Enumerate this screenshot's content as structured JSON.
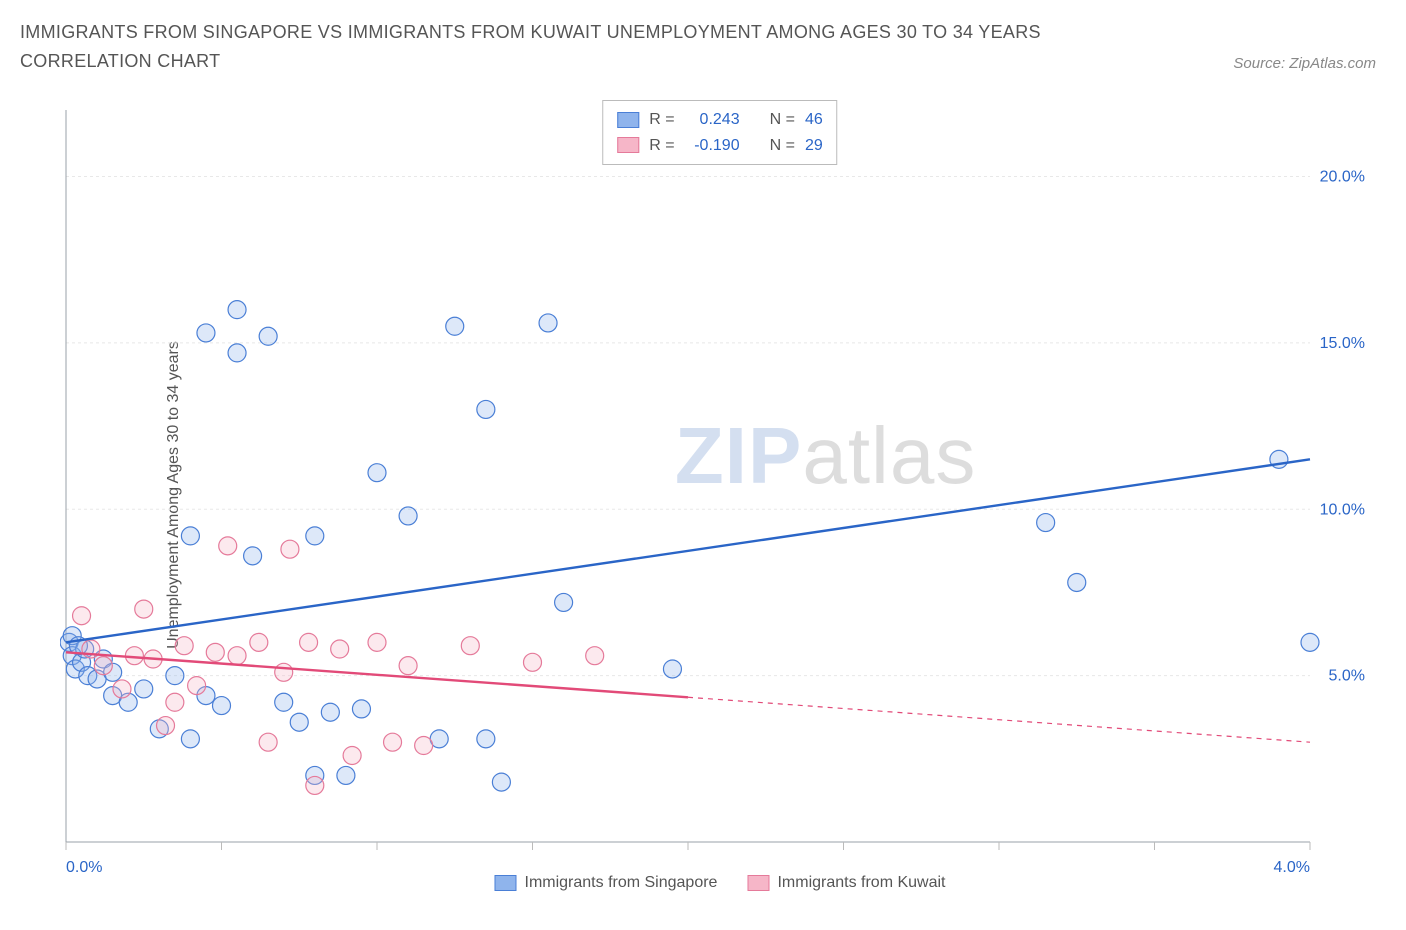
{
  "title": "IMMIGRANTS FROM SINGAPORE VS IMMIGRANTS FROM KUWAIT UNEMPLOYMENT AMONG AGES 30 TO 34 YEARS CORRELATION CHART",
  "source_prefix": "Source: ",
  "source_name": "ZipAtlas.com",
  "y_axis_label": "Unemployment Among Ages 30 to 34 years",
  "watermark_zip": "ZIP",
  "watermark_atlas": "atlas",
  "chart": {
    "type": "scatter",
    "background_color": "#ffffff",
    "plot_border_color": "#9aa1a8",
    "grid_color": "#e8e8e8",
    "tick_color": "#bbbbbb",
    "x_tick_label_color": "#2a65c7",
    "y_tick_label_color": "#2a65c7",
    "tick_fontsize": 16,
    "xlim": [
      0,
      4.0
    ],
    "ylim": [
      0,
      22
    ],
    "x_ticks": [
      0.0,
      0.5,
      1.0,
      1.5,
      2.0,
      2.5,
      3.0,
      3.5,
      4.0
    ],
    "x_tick_labels": [
      "0.0%",
      "",
      "",
      "",
      "",
      "",
      "",
      "",
      "4.0%"
    ],
    "y_grid": [
      5,
      10,
      15,
      20
    ],
    "y_tick_labels": [
      "5.0%",
      "10.0%",
      "15.0%",
      "20.0%"
    ],
    "marker_radius": 9,
    "marker_stroke_width": 1.2,
    "marker_fill_opacity": 0.3,
    "trend_line_width": 2.4,
    "series": [
      {
        "key": "singapore",
        "label": "Immigrants from Singapore",
        "color": "#2a65c7",
        "fill": "#8fb4ec",
        "stroke": "#4a7fd6",
        "r_label": "R = ",
        "r_value": "0.243",
        "n_label": "N = ",
        "n_value": "46",
        "trend": {
          "x1": 0.0,
          "y1": 6.0,
          "x2": 4.0,
          "y2": 11.5,
          "dash_from_x": null
        },
        "points": [
          [
            0.01,
            6.0
          ],
          [
            0.02,
            5.6
          ],
          [
            0.03,
            5.2
          ],
          [
            0.05,
            5.4
          ],
          [
            0.06,
            5.8
          ],
          [
            0.07,
            5.0
          ],
          [
            0.1,
            4.9
          ],
          [
            0.12,
            5.5
          ],
          [
            0.15,
            5.1
          ],
          [
            0.15,
            4.4
          ],
          [
            0.2,
            4.2
          ],
          [
            0.25,
            4.6
          ],
          [
            0.3,
            3.4
          ],
          [
            0.35,
            5.0
          ],
          [
            0.4,
            3.1
          ],
          [
            0.4,
            9.2
          ],
          [
            0.45,
            4.4
          ],
          [
            0.5,
            4.1
          ],
          [
            0.45,
            15.3
          ],
          [
            0.55,
            16.0
          ],
          [
            0.55,
            14.7
          ],
          [
            0.6,
            8.6
          ],
          [
            0.65,
            15.2
          ],
          [
            0.7,
            4.2
          ],
          [
            0.75,
            3.6
          ],
          [
            0.8,
            9.2
          ],
          [
            0.8,
            2.0
          ],
          [
            0.85,
            3.9
          ],
          [
            0.9,
            2.0
          ],
          [
            0.95,
            4.0
          ],
          [
            1.0,
            11.1
          ],
          [
            1.1,
            9.8
          ],
          [
            1.2,
            3.1
          ],
          [
            1.25,
            15.5
          ],
          [
            1.35,
            13.0
          ],
          [
            1.35,
            3.1
          ],
          [
            1.4,
            1.8
          ],
          [
            1.55,
            15.6
          ],
          [
            1.6,
            7.2
          ],
          [
            1.95,
            5.2
          ],
          [
            4.0,
            6.0
          ],
          [
            3.15,
            9.6
          ],
          [
            3.25,
            7.8
          ],
          [
            3.9,
            11.5
          ],
          [
            0.02,
            6.2
          ],
          [
            0.04,
            5.9
          ]
        ]
      },
      {
        "key": "kuwait",
        "label": "Immigrants from Kuwait",
        "color": "#e24a78",
        "fill": "#f6b6c8",
        "stroke": "#e57a9a",
        "r_label": "R = ",
        "r_value": "-0.190",
        "n_label": "N = ",
        "n_value": "29",
        "trend": {
          "x1": 0.0,
          "y1": 5.7,
          "x2": 4.0,
          "y2": 3.0,
          "dash_from_x": 2.0
        },
        "points": [
          [
            0.05,
            6.8
          ],
          [
            0.08,
            5.8
          ],
          [
            0.12,
            5.3
          ],
          [
            0.18,
            4.6
          ],
          [
            0.22,
            5.6
          ],
          [
            0.25,
            7.0
          ],
          [
            0.28,
            5.5
          ],
          [
            0.32,
            3.5
          ],
          [
            0.35,
            4.2
          ],
          [
            0.38,
            5.9
          ],
          [
            0.42,
            4.7
          ],
          [
            0.48,
            5.7
          ],
          [
            0.52,
            8.9
          ],
          [
            0.55,
            5.6
          ],
          [
            0.62,
            6.0
          ],
          [
            0.65,
            3.0
          ],
          [
            0.7,
            5.1
          ],
          [
            0.72,
            8.8
          ],
          [
            0.78,
            6.0
          ],
          [
            0.8,
            1.7
          ],
          [
            0.88,
            5.8
          ],
          [
            0.92,
            2.6
          ],
          [
            1.0,
            6.0
          ],
          [
            1.05,
            3.0
          ],
          [
            1.1,
            5.3
          ],
          [
            1.15,
            2.9
          ],
          [
            1.3,
            5.9
          ],
          [
            1.5,
            5.4
          ],
          [
            1.7,
            5.6
          ]
        ]
      }
    ]
  }
}
